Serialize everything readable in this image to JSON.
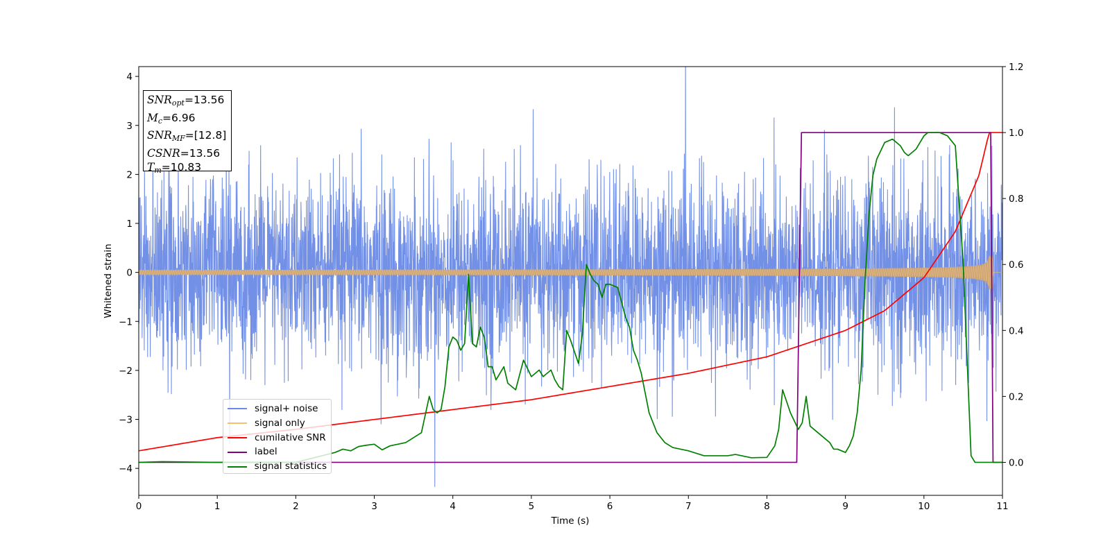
{
  "chart_data": {
    "type": "line",
    "title": "",
    "xlabel": "Time (s)",
    "ylabel": "Whitened strain",
    "xlim": [
      0,
      11
    ],
    "ylim": [
      -4.55,
      4.2
    ],
    "y2lim": [
      -0.1,
      1.2
    ],
    "grid": false,
    "legend_position": "lower-left",
    "x_ticks": [
      0,
      1,
      2,
      3,
      4,
      5,
      6,
      7,
      8,
      9,
      10,
      11
    ],
    "y_ticks": [
      -4,
      -3,
      -2,
      -1,
      0,
      1,
      2,
      3,
      4
    ],
    "y_tick_labels": [
      "−4",
      "−3",
      "−2",
      "−1",
      "0",
      "1",
      "2",
      "3",
      "4"
    ],
    "y2_ticks": [
      0.0,
      0.2,
      0.4,
      0.6,
      0.8,
      1.0,
      1.2
    ],
    "y2_tick_labels": [
      "0.0",
      "0.2",
      "0.4",
      "0.6",
      "0.8",
      "1.0",
      "1.2"
    ],
    "series": [
      {
        "name": "signal+ noise",
        "color": "#6b8ae6",
        "axis": "left",
        "kind": "noise",
        "duration": 11,
        "sigma": 0.95
      },
      {
        "name": "signal only",
        "color": "#f5c06e",
        "axis": "left",
        "kind": "chirp",
        "amplitude_start": 0.05,
        "amplitude_peak": 0.85,
        "merger_time": 10.83
      },
      {
        "name": "cumilative SNR",
        "color": "#ff0000",
        "axis": "right",
        "x": [
          0,
          1,
          2,
          3,
          4,
          5,
          6,
          7,
          8,
          9,
          9.5,
          10,
          10.4,
          10.7,
          10.83,
          11
        ],
        "y": [
          0.035,
          0.075,
          0.1,
          0.13,
          0.16,
          0.19,
          0.23,
          0.27,
          0.32,
          0.4,
          0.46,
          0.56,
          0.7,
          0.87,
          1.0,
          1.0
        ]
      },
      {
        "name": "label",
        "color": "#800080",
        "axis": "right",
        "x": [
          0,
          8.38,
          8.44,
          10.85,
          10.88,
          11
        ],
        "y": [
          0,
          0,
          1,
          1,
          0,
          0
        ]
      },
      {
        "name": "signal statistics",
        "color": "#008000",
        "axis": "right",
        "x": [
          0,
          0.3,
          1,
          2,
          2.5,
          2.6,
          2.7,
          2.8,
          2.9,
          3.0,
          3.1,
          3.2,
          3.3,
          3.4,
          3.5,
          3.6,
          3.7,
          3.75,
          3.8,
          3.85,
          3.9,
          3.95,
          4.0,
          4.05,
          4.1,
          4.15,
          4.2,
          4.25,
          4.3,
          4.35,
          4.4,
          4.45,
          4.5,
          4.55,
          4.6,
          4.65,
          4.7,
          4.75,
          4.8,
          4.9,
          5.0,
          5.1,
          5.15,
          5.2,
          5.25,
          5.3,
          5.35,
          5.4,
          5.45,
          5.5,
          5.6,
          5.65,
          5.7,
          5.75,
          5.8,
          5.85,
          5.9,
          5.95,
          6.0,
          6.1,
          6.2,
          6.25,
          6.3,
          6.35,
          6.4,
          6.5,
          6.55,
          6.6,
          6.7,
          6.8,
          6.9,
          7.0,
          7.2,
          7.5,
          7.6,
          7.8,
          8.0,
          8.1,
          8.15,
          8.2,
          8.3,
          8.4,
          8.45,
          8.5,
          8.55,
          8.6,
          8.7,
          8.8,
          8.85,
          8.9,
          9.0,
          9.05,
          9.1,
          9.15,
          9.2,
          9.25,
          9.3,
          9.35,
          9.4,
          9.5,
          9.6,
          9.7,
          9.75,
          9.8,
          9.9,
          10.0,
          10.05,
          10.1,
          10.2,
          10.3,
          10.4,
          10.5,
          10.6,
          10.65,
          10.7,
          10.75,
          10.8,
          10.85,
          10.9,
          10.95,
          11
        ],
        "y": [
          0.0,
          0.002,
          0.0,
          0.0,
          0.03,
          0.04,
          0.035,
          0.048,
          0.052,
          0.055,
          0.038,
          0.05,
          0.055,
          0.06,
          0.075,
          0.09,
          0.2,
          0.16,
          0.15,
          0.16,
          0.23,
          0.35,
          0.38,
          0.37,
          0.34,
          0.36,
          0.57,
          0.36,
          0.35,
          0.41,
          0.38,
          0.29,
          0.29,
          0.25,
          0.27,
          0.29,
          0.24,
          0.23,
          0.22,
          0.31,
          0.26,
          0.28,
          0.26,
          0.27,
          0.28,
          0.25,
          0.23,
          0.22,
          0.4,
          0.37,
          0.3,
          0.39,
          0.6,
          0.57,
          0.55,
          0.54,
          0.5,
          0.54,
          0.54,
          0.53,
          0.44,
          0.41,
          0.34,
          0.31,
          0.27,
          0.15,
          0.12,
          0.09,
          0.06,
          0.045,
          0.04,
          0.035,
          0.02,
          0.02,
          0.024,
          0.014,
          0.015,
          0.05,
          0.1,
          0.22,
          0.15,
          0.1,
          0.12,
          0.2,
          0.11,
          0.1,
          0.08,
          0.06,
          0.04,
          0.04,
          0.03,
          0.05,
          0.08,
          0.15,
          0.28,
          0.55,
          0.75,
          0.87,
          0.92,
          0.97,
          0.98,
          0.96,
          0.94,
          0.93,
          0.95,
          0.99,
          1.0,
          1.0,
          1.0,
          0.99,
          0.96,
          0.6,
          0.02,
          0.0,
          0.0,
          0.0,
          0.0,
          0.0,
          0.0,
          0.0,
          0.0
        ]
      }
    ],
    "annotation": {
      "snr_opt": "=13.56",
      "mc": "=6.96",
      "snr_mf": "=[12.8]",
      "csnr": "=13.56",
      "tm": "=10.83"
    }
  },
  "legend_labels": [
    "signal+ noise",
    "signal only",
    "cumilative SNR",
    "label",
    "signal statistics"
  ]
}
